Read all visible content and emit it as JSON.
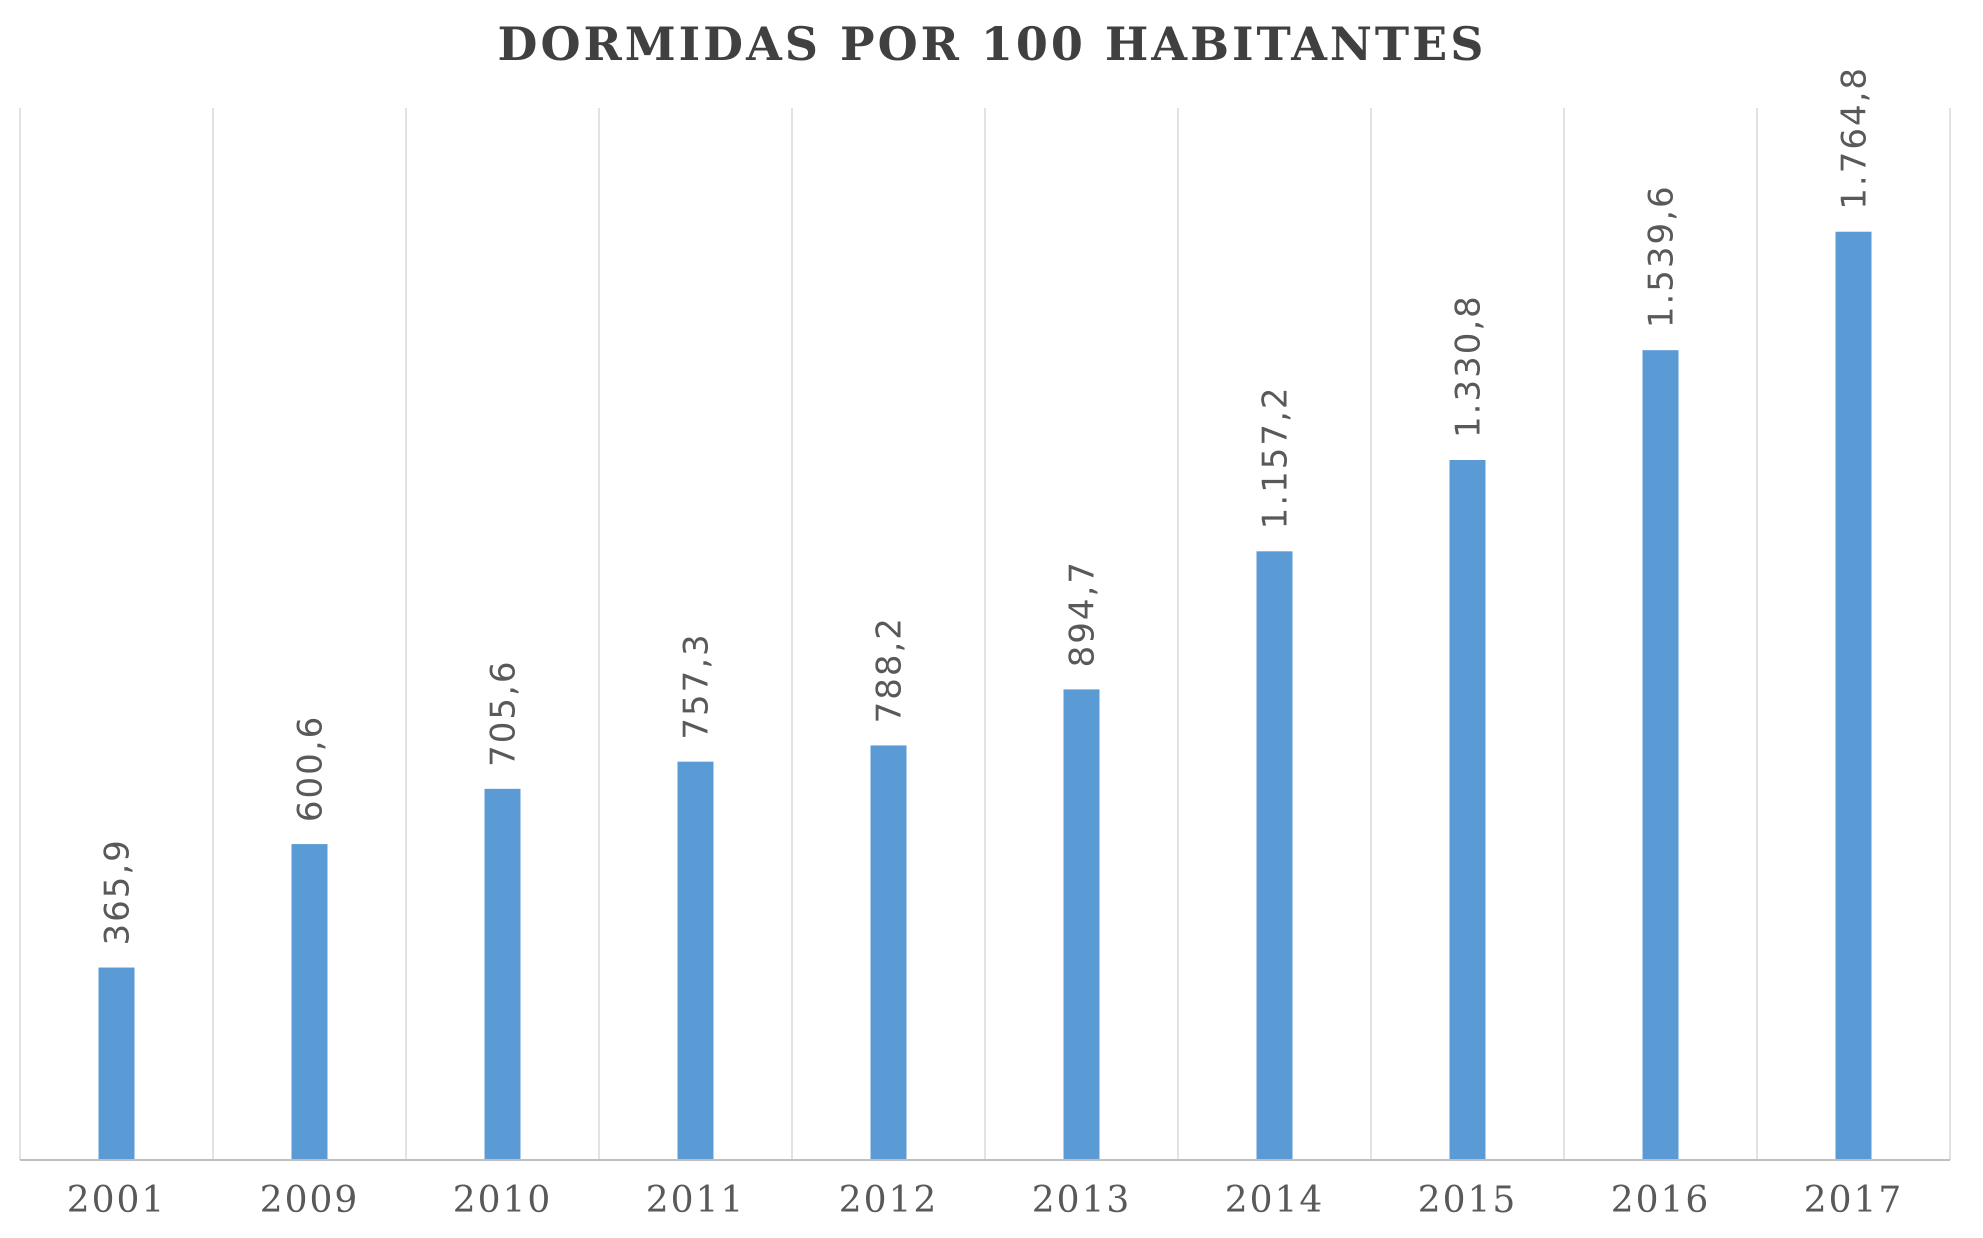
{
  "chart_data": {
    "type": "bar",
    "title": "DORMIDAS POR 100 HABITANTES",
    "xlabel": "",
    "ylabel": "",
    "categories": [
      "2001",
      "2009",
      "2010",
      "2011",
      "2012",
      "2013",
      "2014",
      "2015",
      "2016",
      "2017"
    ],
    "values": [
      365.9,
      600.6,
      705.6,
      757.3,
      788.2,
      894.7,
      1157.2,
      1330.8,
      1539.6,
      1764.8
    ],
    "data_labels": [
      "365,9",
      "600,6",
      "705,6",
      "757,3",
      "788,2",
      "894,7",
      "1.157,2",
      "1.330,8",
      "1.539,6",
      "1.764,8"
    ],
    "ylim": [
      0,
      2000
    ],
    "grid": "vertical separators between categories",
    "legend": "none",
    "colors": {
      "bar": "#5B9BD5",
      "grid": "#D9D9D9",
      "axis": "#BFBFBF",
      "text": "#595959",
      "title": "#404040"
    }
  }
}
